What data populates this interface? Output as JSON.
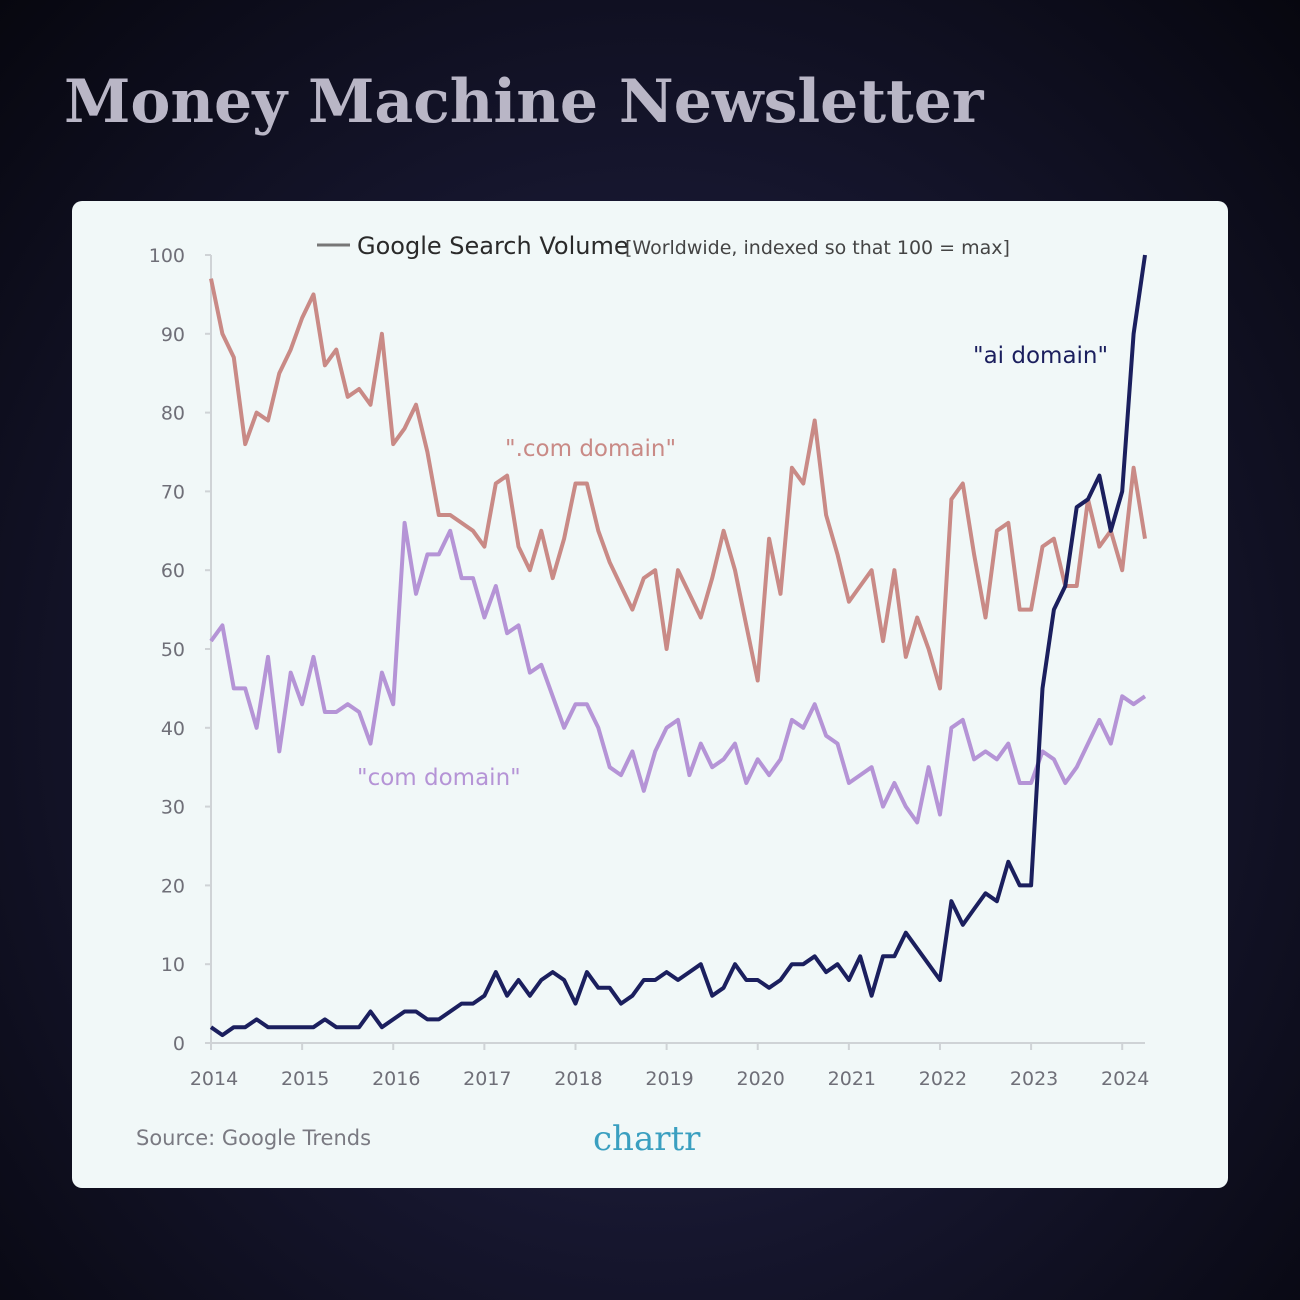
{
  "header": {
    "title": "Money Machine Newsletter"
  },
  "chart_data": {
    "type": "line",
    "title": "Google Search Volume",
    "subtitle": "[Worldwide, indexed so that 100 = max]",
    "source": "Source: Google Trends",
    "logo": "chartr",
    "x": [
      2014,
      2014.125,
      2014.25,
      2014.375,
      2014.5,
      2014.625,
      2014.75,
      2014.875,
      2015,
      2015.125,
      2015.25,
      2015.375,
      2015.5,
      2015.625,
      2015.75,
      2015.875,
      2016,
      2016.125,
      2016.25,
      2016.375,
      2016.5,
      2016.625,
      2016.75,
      2016.875,
      2017,
      2017.125,
      2017.25,
      2017.375,
      2017.5,
      2017.625,
      2017.75,
      2017.875,
      2018,
      2018.125,
      2018.25,
      2018.375,
      2018.5,
      2018.625,
      2018.75,
      2018.875,
      2019,
      2019.125,
      2019.25,
      2019.375,
      2019.5,
      2019.625,
      2019.75,
      2019.875,
      2020,
      2020.125,
      2020.25,
      2020.375,
      2020.5,
      2020.625,
      2020.75,
      2020.875,
      2021,
      2021.125,
      2021.25,
      2021.375,
      2021.5,
      2021.625,
      2021.75,
      2021.875,
      2022,
      2022.125,
      2022.25,
      2022.375,
      2022.5,
      2022.625,
      2022.75,
      2022.875,
      2023,
      2023.125,
      2023.25,
      2023.375,
      2023.5,
      2023.625,
      2023.75,
      2023.875,
      2024,
      2024.125,
      2024.25
    ],
    "series": [
      {
        "name": "\".com domain\"",
        "color": "#c98a86",
        "values": [
          97,
          90,
          87,
          76,
          80,
          79,
          85,
          88,
          92,
          95,
          86,
          88,
          82,
          83,
          81,
          90,
          76,
          78,
          81,
          75,
          67,
          67,
          66,
          65,
          63,
          71,
          72,
          63,
          60,
          65,
          59,
          64,
          71,
          71,
          65,
          61,
          58,
          55,
          59,
          60,
          50,
          60,
          57,
          54,
          59,
          65,
          60,
          53,
          46,
          64,
          57,
          73,
          71,
          79,
          67,
          62,
          56,
          58,
          60,
          51,
          60,
          49,
          54,
          50,
          45,
          69,
          71,
          62,
          54,
          65,
          66,
          55,
          55,
          63,
          64,
          58,
          58,
          69,
          63,
          65,
          60,
          73,
          64
        ]
      },
      {
        "name": "\"com domain\"",
        "color": "#b594d6",
        "values": [
          51,
          53,
          45,
          45,
          40,
          49,
          37,
          47,
          43,
          49,
          42,
          42,
          43,
          42,
          38,
          47,
          43,
          66,
          57,
          62,
          62,
          65,
          59,
          59,
          54,
          58,
          52,
          53,
          47,
          48,
          44,
          40,
          43,
          43,
          40,
          35,
          34,
          37,
          32,
          37,
          40,
          41,
          34,
          38,
          35,
          36,
          38,
          33,
          36,
          34,
          36,
          41,
          40,
          43,
          39,
          38,
          33,
          34,
          35,
          30,
          33,
          30,
          28,
          35,
          29,
          40,
          41,
          36,
          37,
          36,
          38,
          33,
          33,
          37,
          36,
          33,
          35,
          38,
          41,
          38,
          44,
          43,
          44
        ]
      },
      {
        "name": "\"ai domain\"",
        "color": "#1b1f5e",
        "values": [
          2,
          1,
          2,
          2,
          3,
          2,
          2,
          2,
          2,
          2,
          3,
          2,
          2,
          2,
          4,
          2,
          3,
          4,
          4,
          3,
          3,
          4,
          5,
          5,
          6,
          9,
          6,
          8,
          6,
          8,
          9,
          8,
          5,
          9,
          7,
          7,
          5,
          6,
          8,
          8,
          9,
          8,
          9,
          10,
          6,
          7,
          10,
          8,
          8,
          7,
          8,
          10,
          10,
          11,
          9,
          10,
          8,
          11,
          6,
          11,
          11,
          14,
          12,
          10,
          8,
          18,
          15,
          17,
          19,
          18,
          23,
          20,
          20,
          45,
          55,
          58,
          68,
          69,
          72,
          65,
          70,
          90,
          100
        ]
      }
    ],
    "xlim": [
      2014,
      2024.25
    ],
    "xticks": [
      2014,
      2015,
      2016,
      2017,
      2018,
      2019,
      2020,
      2021,
      2022,
      2023,
      2024
    ],
    "ylim": [
      0,
      100
    ],
    "yticks": [
      0,
      10,
      20,
      30,
      40,
      50,
      60,
      70,
      80,
      90,
      100
    ]
  }
}
